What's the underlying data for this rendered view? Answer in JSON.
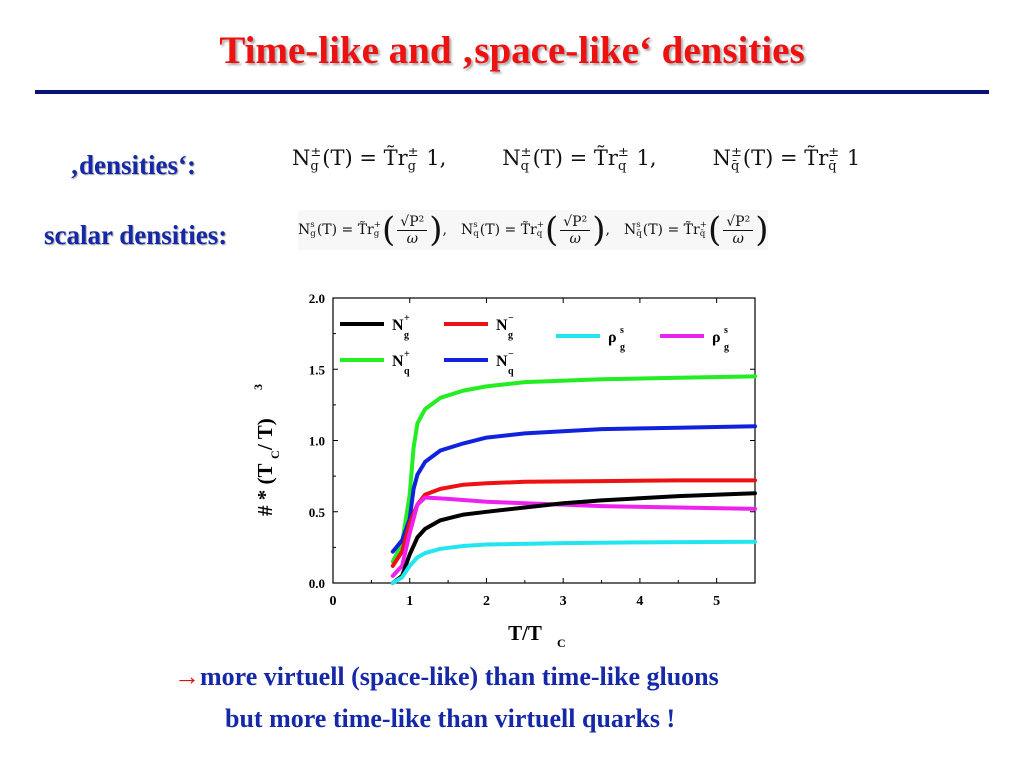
{
  "slide": {
    "title": "Time-like and ‚space-like‘ densities",
    "densities_label": "‚densities‘:",
    "scalar_label": "scalar densities:",
    "eq_row1": [
      {
        "lhs": "N",
        "sup": "±",
        "sub": "g",
        "arg": "(T) = ",
        "tr": "T̃r",
        "trsup": "±",
        "trsub": "g",
        "rhs": " 1,"
      },
      {
        "lhs": "N",
        "sup": "±",
        "sub": "q",
        "arg": "(T) = ",
        "tr": "T̃r",
        "trsup": "±",
        "trsub": "q",
        "rhs": " 1,"
      },
      {
        "lhs": "N",
        "sup": "±",
        "sub": "q̄",
        "arg": "(T) = ",
        "tr": "T̃r",
        "trsup": "±",
        "trsub": "q̄",
        "rhs": " 1"
      }
    ],
    "eq_row2": [
      {
        "lhs": "N",
        "sup": "s",
        "sub": "g",
        "arg": "(T) = ",
        "tr": "T̃r",
        "trsup": "+",
        "trsub": "g",
        "num": "√P²",
        "den": "ω",
        "end": ","
      },
      {
        "lhs": "N",
        "sup": "s",
        "sub": "q",
        "arg": "(T) = ",
        "tr": "T̃r",
        "trsup": "+",
        "trsub": "q",
        "num": "√P²",
        "den": "ω",
        "end": ","
      },
      {
        "lhs": "N",
        "sup": "s",
        "sub": "q̄",
        "arg": "(T) = ",
        "tr": "T̃r",
        "trsup": "+",
        "trsub": "q̄",
        "num": "√P²",
        "den": "ω",
        "end": ""
      }
    ],
    "conclusion_arrow": "→",
    "conclusion_line1": "more virtuell (space-like) than time-like gluons",
    "conclusion_line2": "but more time-like than virtuell quarks !"
  },
  "chart_data": {
    "type": "line",
    "xlabel": "T/T",
    "xlabel_sub": "C",
    "ylabel": "# * (T",
    "ylabel_sub": "C",
    "ylabel_tail": " / T)",
    "ylabel_sup": "3",
    "xlim": [
      0,
      5.5
    ],
    "ylim": [
      0,
      2.0
    ],
    "x_ticks": [
      "0",
      "1",
      "2",
      "3",
      "4",
      "5"
    ],
    "y_ticks": [
      "0.0",
      "0.5",
      "1.0",
      "1.5",
      "2.0"
    ],
    "grid": false,
    "legend": [
      {
        "name": "N",
        "sup": "+",
        "sub": "g",
        "color": "#000000"
      },
      {
        "name": "N",
        "sup": "−",
        "sub": "g",
        "color": "#ee1111"
      },
      {
        "name": "ρ",
        "sup": "s",
        "sub": "g",
        "color": "#22e5f0"
      },
      {
        "name": "ρ",
        "sup": "s",
        "sub": "g",
        "color": "#ee22ee"
      },
      {
        "name": "N",
        "sup": "+",
        "sub": "q",
        "color": "#22ee22"
      },
      {
        "name": "N",
        "sup": "−",
        "sub": "q",
        "color": "#1122dd"
      }
    ],
    "series": [
      {
        "color": "#22ee22",
        "points": [
          [
            0.78,
            0.15
          ],
          [
            0.9,
            0.28
          ],
          [
            1.0,
            0.62
          ],
          [
            1.05,
            0.95
          ],
          [
            1.1,
            1.12
          ],
          [
            1.2,
            1.22
          ],
          [
            1.4,
            1.3
          ],
          [
            1.7,
            1.35
          ],
          [
            2.0,
            1.38
          ],
          [
            2.5,
            1.41
          ],
          [
            3.5,
            1.43
          ],
          [
            4.5,
            1.44
          ],
          [
            5.5,
            1.45
          ]
        ]
      },
      {
        "color": "#1122dd",
        "points": [
          [
            0.78,
            0.22
          ],
          [
            0.9,
            0.3
          ],
          [
            1.0,
            0.45
          ],
          [
            1.05,
            0.66
          ],
          [
            1.1,
            0.76
          ],
          [
            1.2,
            0.85
          ],
          [
            1.4,
            0.93
          ],
          [
            1.7,
            0.98
          ],
          [
            2.0,
            1.02
          ],
          [
            2.5,
            1.05
          ],
          [
            3.5,
            1.08
          ],
          [
            4.5,
            1.09
          ],
          [
            5.5,
            1.1
          ]
        ]
      },
      {
        "color": "#ee1111",
        "points": [
          [
            0.78,
            0.12
          ],
          [
            0.9,
            0.22
          ],
          [
            1.0,
            0.42
          ],
          [
            1.1,
            0.55
          ],
          [
            1.2,
            0.62
          ],
          [
            1.4,
            0.66
          ],
          [
            1.7,
            0.69
          ],
          [
            2.0,
            0.7
          ],
          [
            2.5,
            0.71
          ],
          [
            3.5,
            0.715
          ],
          [
            4.5,
            0.72
          ],
          [
            5.5,
            0.72
          ]
        ]
      },
      {
        "color": "#ee22ee",
        "points": [
          [
            0.78,
            0.05
          ],
          [
            0.9,
            0.12
          ],
          [
            1.0,
            0.35
          ],
          [
            1.1,
            0.55
          ],
          [
            1.2,
            0.6
          ],
          [
            1.5,
            0.59
          ],
          [
            2.0,
            0.57
          ],
          [
            2.5,
            0.56
          ],
          [
            3.0,
            0.55
          ],
          [
            3.5,
            0.54
          ],
          [
            4.5,
            0.53
          ],
          [
            5.5,
            0.52
          ]
        ]
      },
      {
        "color": "#000000",
        "points": [
          [
            0.78,
            0.0
          ],
          [
            0.9,
            0.05
          ],
          [
            1.0,
            0.2
          ],
          [
            1.1,
            0.32
          ],
          [
            1.2,
            0.38
          ],
          [
            1.4,
            0.44
          ],
          [
            1.7,
            0.48
          ],
          [
            2.0,
            0.5
          ],
          [
            2.5,
            0.53
          ],
          [
            3.0,
            0.56
          ],
          [
            3.5,
            0.58
          ],
          [
            4.5,
            0.61
          ],
          [
            5.5,
            0.63
          ]
        ]
      },
      {
        "color": "#22e5f0",
        "points": [
          [
            0.78,
            0.0
          ],
          [
            0.9,
            0.04
          ],
          [
            1.0,
            0.12
          ],
          [
            1.1,
            0.18
          ],
          [
            1.2,
            0.21
          ],
          [
            1.4,
            0.24
          ],
          [
            1.7,
            0.26
          ],
          [
            2.0,
            0.27
          ],
          [
            3.0,
            0.28
          ],
          [
            4.0,
            0.285
          ],
          [
            5.5,
            0.29
          ]
        ]
      }
    ]
  }
}
